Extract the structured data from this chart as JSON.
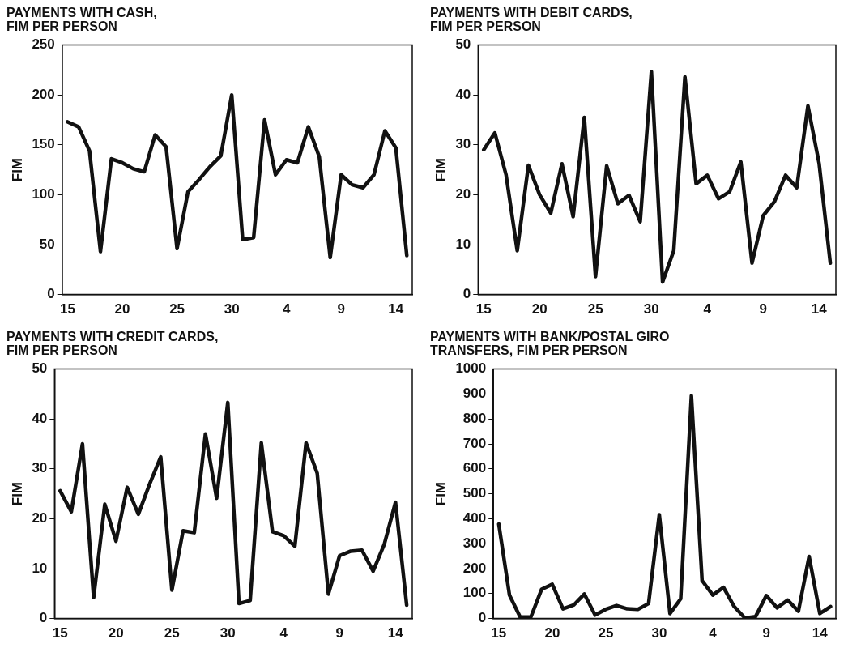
{
  "chart_data": [
    {
      "type": "line",
      "title": "PAYMENTS WITH CASH,\nFIM PER PERSON",
      "ylabel": "FIM",
      "categories": [
        "15",
        null,
        null,
        null,
        null,
        "20",
        null,
        null,
        null,
        null,
        "25",
        null,
        null,
        null,
        null,
        "30",
        null,
        null,
        null,
        null,
        "4",
        null,
        null,
        null,
        null,
        "9",
        null,
        null,
        null,
        null,
        "14",
        null
      ],
      "series": [
        {
          "color": "#111111",
          "values": [
            173,
            168,
            144,
            43,
            136,
            132,
            126,
            123,
            160,
            148,
            46,
            103,
            115,
            128,
            139,
            200,
            55,
            57,
            175,
            120,
            135,
            132,
            168,
            138,
            37,
            120,
            110,
            107,
            120,
            164,
            147,
            39
          ]
        }
      ],
      "ylim": [
        0,
        250
      ],
      "yticks": [
        0,
        50,
        100,
        150,
        200,
        250
      ],
      "legend": false,
      "marker": "none",
      "line_style": "solid"
    },
    {
      "type": "line",
      "title": "PAYMENTS WITH DEBIT CARDS,\nFIM PER PERSON",
      "ylabel": "FIM",
      "categories": [
        "15",
        null,
        null,
        null,
        null,
        "20",
        null,
        null,
        null,
        null,
        "25",
        null,
        null,
        null,
        null,
        "30",
        null,
        null,
        null,
        null,
        "4",
        null,
        null,
        null,
        null,
        "9",
        null,
        null,
        null,
        null,
        "14",
        null
      ],
      "series": [
        {
          "color": "#111111",
          "values": [
            29,
            32.4,
            24,
            8.8,
            25.9,
            20,
            16.3,
            26.2,
            15.6,
            35.5,
            3.6,
            25.8,
            18.2,
            19.9,
            14.6,
            44.7,
            2.5,
            8.8,
            43.6,
            22.2,
            23.9,
            19.2,
            20.6,
            26.6,
            6.3,
            15.8,
            18.6,
            23.9,
            21.4,
            37.8,
            26.3,
            6.3
          ]
        }
      ],
      "ylim": [
        0,
        50
      ],
      "yticks": [
        0,
        10,
        20,
        30,
        40,
        50
      ],
      "legend": false,
      "marker": "none",
      "line_style": "solid"
    },
    {
      "type": "line",
      "title": "PAYMENTS WITH CREDIT CARDS,\nFIM PER PERSON",
      "ylabel": "FIM",
      "categories": [
        "15",
        null,
        null,
        null,
        null,
        "20",
        null,
        null,
        null,
        null,
        "25",
        null,
        null,
        null,
        null,
        "30",
        null,
        null,
        null,
        null,
        "4",
        null,
        null,
        null,
        null,
        "9",
        null,
        null,
        null,
        null,
        "14",
        null
      ],
      "series": [
        {
          "color": "#111111",
          "values": [
            25.6,
            21.4,
            35,
            4.2,
            22.9,
            15.5,
            26.3,
            20.9,
            26.9,
            32.4,
            5.7,
            17.6,
            17.2,
            37,
            24.1,
            43.3,
            3,
            3.6,
            35.2,
            17.4,
            16.6,
            14.5,
            35.2,
            29.1,
            4.9,
            12.6,
            13.5,
            13.7,
            9.5,
            14.9,
            23.3,
            2.7
          ]
        }
      ],
      "ylim": [
        0,
        50
      ],
      "yticks": [
        0,
        10,
        20,
        30,
        40,
        50
      ],
      "legend": false,
      "marker": "none",
      "line_style": "solid"
    },
    {
      "type": "line",
      "title": "PAYMENTS WITH BANK/POSTAL GIRO\nTRANSFERS, FIM PER PERSON",
      "ylabel": "FIM",
      "categories": [
        "15",
        null,
        null,
        null,
        null,
        "20",
        null,
        null,
        null,
        null,
        "25",
        null,
        null,
        null,
        null,
        "30",
        null,
        null,
        null,
        null,
        "4",
        null,
        null,
        null,
        null,
        "9",
        null,
        null,
        null,
        null,
        "14",
        null
      ],
      "series": [
        {
          "color": "#111111",
          "values": [
            379,
            94,
            6,
            6,
            117,
            137,
            39,
            54,
            98,
            14,
            37,
            52,
            39,
            37,
            60,
            416,
            20,
            79,
            893,
            152,
            94,
            125,
            48,
            2,
            8,
            92,
            43,
            74,
            29,
            249,
            20,
            48
          ]
        }
      ],
      "ylim": [
        0,
        1000
      ],
      "yticks": [
        0,
        100,
        200,
        300,
        400,
        500,
        600,
        700,
        800,
        900,
        1000
      ],
      "legend": false,
      "marker": "none",
      "line_style": "solid"
    }
  ]
}
